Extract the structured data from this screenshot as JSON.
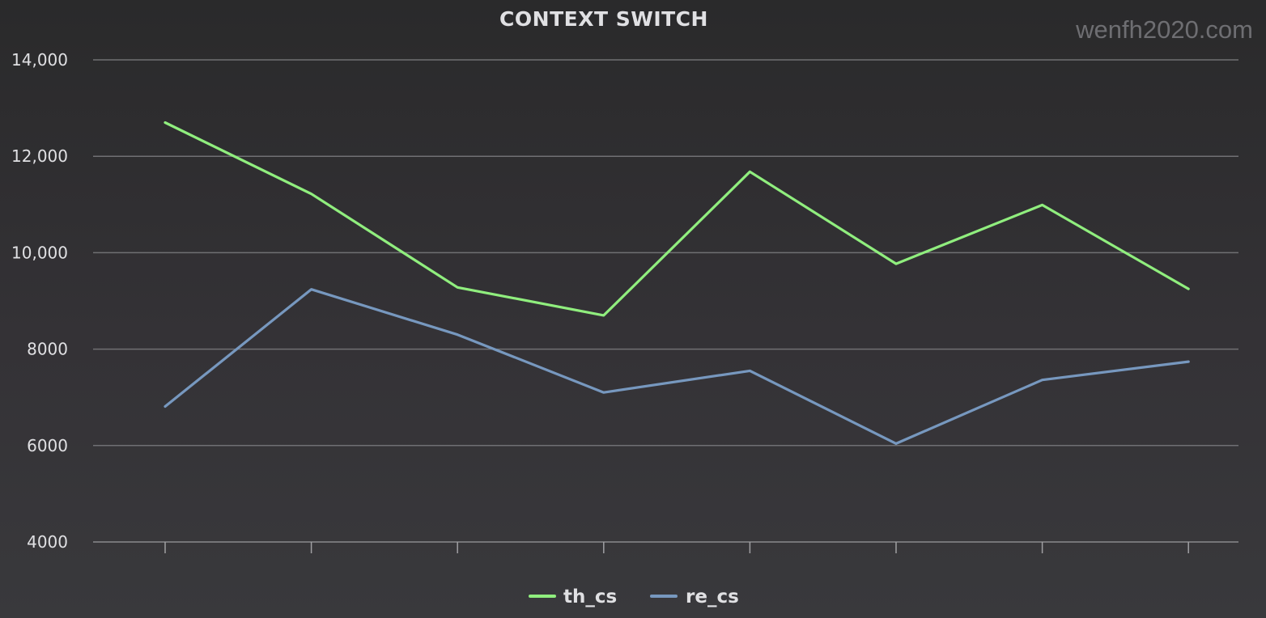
{
  "watermark": "wenfh2020.com",
  "chart_data": {
    "type": "line",
    "title": "CONTEXT SWITCH",
    "xlabel": "",
    "ylabel": "",
    "categories": [
      "",
      "",
      "",
      "",
      "",
      "",
      "",
      ""
    ],
    "ylim": [
      4000,
      14000
    ],
    "y_ticks": [
      4000,
      6000,
      8000,
      10000,
      12000,
      14000
    ],
    "y_tick_labels": [
      "4000",
      "6000",
      "8000",
      "10,000",
      "12,000",
      "14,000"
    ],
    "grid": true,
    "legend_position": "bottom-center",
    "series": [
      {
        "name": "th_cs",
        "color": "#90ee7e",
        "values": [
          12700,
          11220,
          9280,
          8700,
          11680,
          9770,
          10990,
          9250
        ]
      },
      {
        "name": "re_cs",
        "color": "#7798bf",
        "values": [
          6810,
          9240,
          8300,
          7100,
          7550,
          6040,
          7360,
          7740
        ]
      }
    ]
  }
}
